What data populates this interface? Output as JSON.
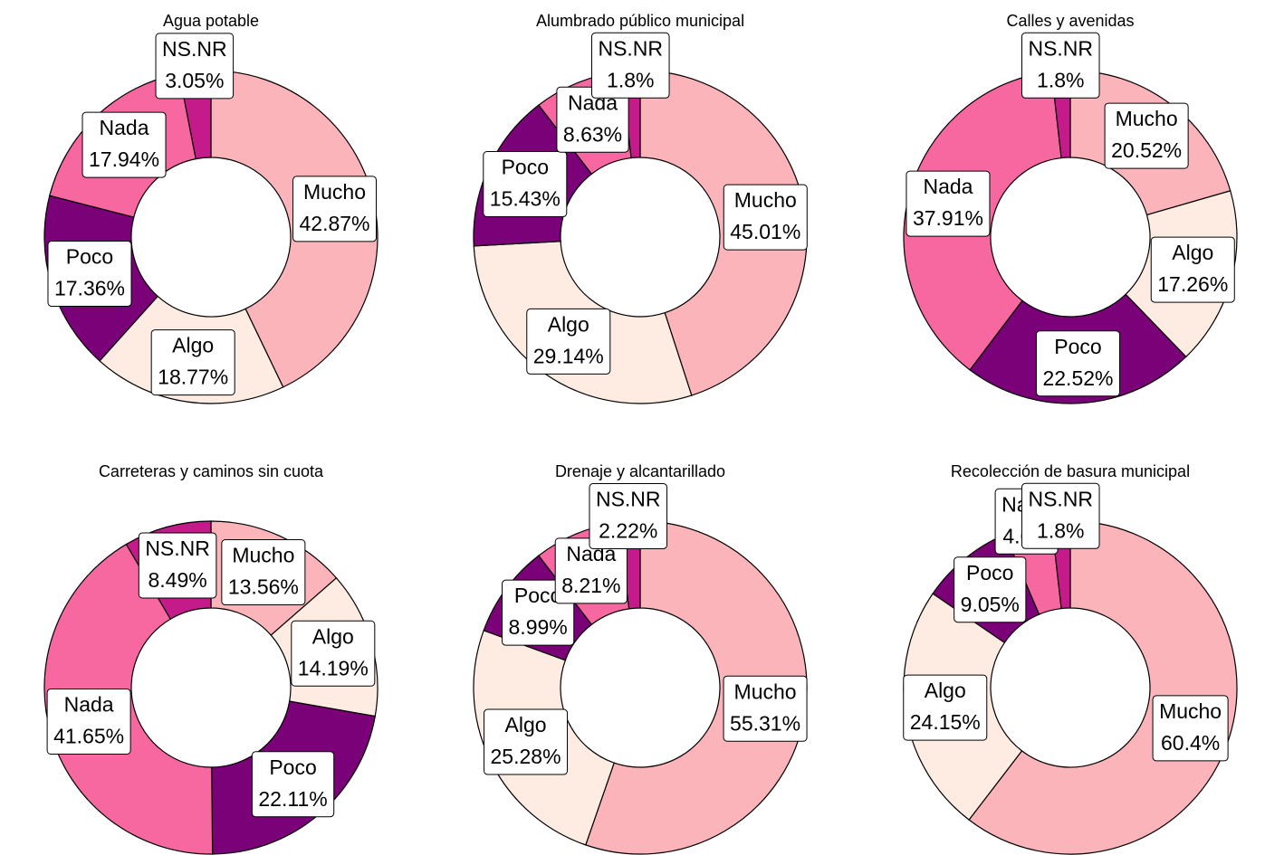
{
  "chart_data": [
    {
      "type": "pie",
      "title": "Agua potable",
      "categories": [
        "Mucho",
        "Algo",
        "Poco",
        "Nada",
        "NS.NR"
      ],
      "values": [
        42.87,
        18.77,
        17.36,
        17.94,
        3.05
      ],
      "value_labels": [
        "42.87%",
        "18.77%",
        "17.36%",
        "17.94%",
        "3.05%"
      ],
      "colors": [
        "#fbb4b9",
        "#feebe2",
        "#7a0177",
        "#f768a1",
        "#c51b8a"
      ]
    },
    {
      "type": "pie",
      "title": "Alumbrado público municipal",
      "categories": [
        "Mucho",
        "Algo",
        "Poco",
        "Nada",
        "NS.NR"
      ],
      "values": [
        45.01,
        29.14,
        15.43,
        8.63,
        1.8
      ],
      "value_labels": [
        "45.01%",
        "29.14%",
        "15.43%",
        "8.63%",
        "1.8%"
      ],
      "colors": [
        "#fbb4b9",
        "#feebe2",
        "#7a0177",
        "#f768a1",
        "#c51b8a"
      ]
    },
    {
      "type": "pie",
      "title": "Calles y avenidas",
      "categories": [
        "Mucho",
        "Algo",
        "Poco",
        "Nada",
        "NS.NR"
      ],
      "values": [
        20.52,
        17.26,
        22.52,
        37.91,
        1.8
      ],
      "value_labels": [
        "20.52%",
        "17.26%",
        "22.52%",
        "37.91%",
        "1.8%"
      ],
      "colors": [
        "#fbb4b9",
        "#feebe2",
        "#7a0177",
        "#f768a1",
        "#c51b8a"
      ]
    },
    {
      "type": "pie",
      "title": "Carreteras y caminos sin cuota",
      "categories": [
        "Mucho",
        "Algo",
        "Poco",
        "Nada",
        "NS.NR"
      ],
      "values": [
        13.56,
        14.19,
        22.11,
        41.65,
        8.49
      ],
      "value_labels": [
        "13.56%",
        "14.19%",
        "22.11%",
        "41.65%",
        "8.49%"
      ],
      "colors": [
        "#fbb4b9",
        "#feebe2",
        "#7a0177",
        "#f768a1",
        "#c51b8a"
      ]
    },
    {
      "type": "pie",
      "title": "Drenaje y alcantarillado",
      "categories": [
        "Mucho",
        "Algo",
        "Poco",
        "Nada",
        "NS.NR"
      ],
      "values": [
        55.31,
        25.28,
        8.99,
        8.21,
        2.22
      ],
      "value_labels": [
        "55.31%",
        "25.28%",
        "8.99%",
        "8.21%",
        "2.22%"
      ],
      "colors": [
        "#fbb4b9",
        "#feebe2",
        "#7a0177",
        "#f768a1",
        "#c51b8a"
      ]
    },
    {
      "type": "pie",
      "title": "Recolección de basura municipal",
      "categories": [
        "Mucho",
        "Algo",
        "Poco",
        "Nada",
        "NS.NR"
      ],
      "values": [
        60.4,
        24.15,
        9.05,
        4.6,
        1.8
      ],
      "value_labels": [
        "60.4%",
        "24.15%",
        "9.05%",
        "4.6%",
        "1.8%"
      ],
      "colors": [
        "#fbb4b9",
        "#feebe2",
        "#7a0177",
        "#f768a1",
        "#c51b8a"
      ]
    }
  ]
}
